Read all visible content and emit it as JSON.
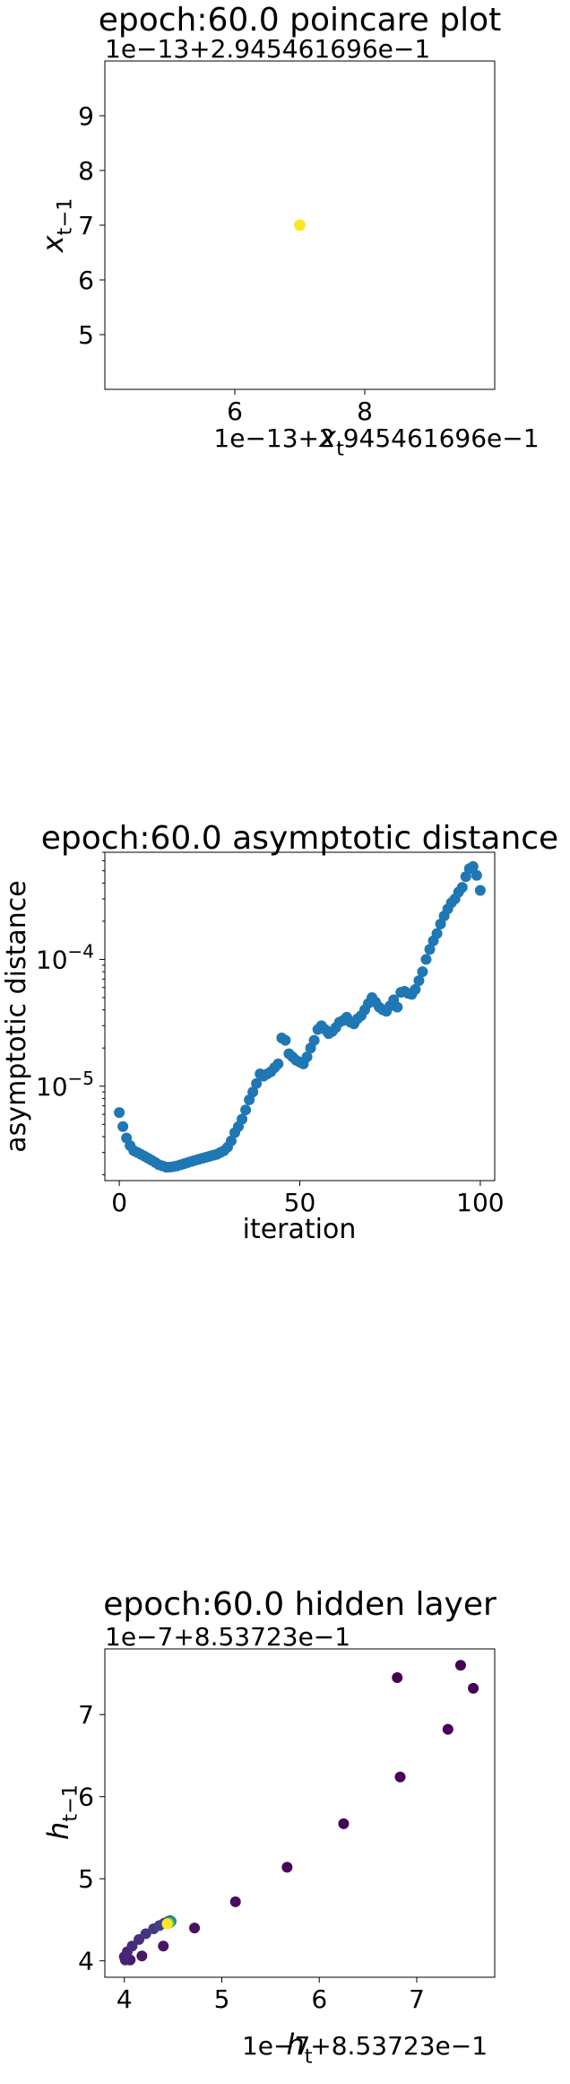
{
  "chart_data": [
    {
      "type": "scatter",
      "title": "epoch:60.0 poincare plot",
      "xlabel": "x_t",
      "ylabel": "x_{t-1}",
      "x_offset_label": "1e−13+2.945461696e−1",
      "y_offset_label": "1e−13+2.945461696e−1",
      "xlim": [
        4.0,
        10.0
      ],
      "ylim": [
        4.0,
        10.0
      ],
      "xticks": [
        6,
        8
      ],
      "yticks": [
        5,
        6,
        7,
        8,
        9
      ],
      "points": [
        {
          "x": 7.0,
          "y": 7.0,
          "color": "#fde725"
        }
      ]
    },
    {
      "type": "scatter",
      "title": "epoch:60.0 asymptotic distance",
      "xlabel": "iteration",
      "ylabel": "asymptotic distance",
      "yscale": "log",
      "xlim": [
        -4,
        104
      ],
      "ylim": [
        1.8e-06,
        0.0007
      ],
      "xticks": [
        0,
        50,
        100
      ],
      "yticks": [
        {
          "value": 1e-05,
          "base": "10",
          "exp": "−5"
        },
        {
          "value": 0.0001,
          "base": "10",
          "exp": "−4"
        }
      ],
      "color": "#1f77b4",
      "y": [
        6.2e-06,
        4.8e-06,
        3.9e-06,
        3.4e-06,
        3.1e-06,
        3e-06,
        2.9e-06,
        2.8e-06,
        2.7e-06,
        2.6e-06,
        2.5e-06,
        2.4e-06,
        2.35e-06,
        2.3e-06,
        2.3e-06,
        2.32e-06,
        2.35e-06,
        2.4e-06,
        2.45e-06,
        2.5e-06,
        2.55e-06,
        2.6e-06,
        2.65e-06,
        2.7e-06,
        2.75e-06,
        2.8e-06,
        2.85e-06,
        2.9e-06,
        3e-06,
        3.1e-06,
        3.3e-06,
        3.7e-06,
        4.3e-06,
        4.8e-06,
        5.5e-06,
        6.5e-06,
        7.8e-06,
        9e-06,
        1.05e-05,
        1.25e-05,
        1.2e-05,
        1.25e-05,
        1.3e-05,
        1.4e-05,
        1.5e-05,
        2.4e-05,
        2.3e-05,
        1.8e-05,
        1.7e-05,
        1.6e-05,
        1.55e-05,
        1.5e-05,
        1.7e-05,
        2e-05,
        2.3e-05,
        2.8e-05,
        3e-05,
        2.8e-05,
        2.6e-05,
        2.7e-05,
        2.9e-05,
        3.2e-05,
        3.3e-05,
        3.5e-05,
        3.2e-05,
        3.1e-05,
        3.4e-05,
        3.6e-05,
        4e-05,
        4.5e-05,
        5e-05,
        4.6e-05,
        4.2e-05,
        4e-05,
        3.9e-05,
        4.3e-05,
        4.8e-05,
        4.2e-05,
        5.5e-05,
        5.6e-05,
        5.4e-05,
        5.3e-05,
        5.8e-05,
        6.8e-05,
        8e-05,
        0.0001,
        0.00012,
        0.00014,
        0.00016,
        0.00019,
        0.00022,
        0.00025,
        0.00028,
        0.0003,
        0.00034,
        0.00037,
        0.00045,
        0.00052,
        0.00054,
        0.00046,
        0.00035
      ]
    },
    {
      "type": "scatter",
      "title": "epoch:60.0 hidden layer",
      "xlabel": "h_t",
      "ylabel": "h_{t-1}",
      "x_offset_label": "1e−7+8.53723e−1",
      "y_offset_label": "1e−7+8.53723e−1",
      "xlim": [
        3.8,
        7.8
      ],
      "ylim": [
        3.8,
        7.8
      ],
      "xticks": [
        4,
        5,
        6,
        7
      ],
      "yticks": [
        4,
        5,
        6,
        7
      ],
      "points": [
        {
          "x": 6.8,
          "y": 7.45,
          "color": "#440154"
        },
        {
          "x": 7.45,
          "y": 7.6,
          "color": "#440154"
        },
        {
          "x": 7.58,
          "y": 7.32,
          "color": "#440154"
        },
        {
          "x": 7.32,
          "y": 6.82,
          "color": "#440154"
        },
        {
          "x": 6.83,
          "y": 6.24,
          "color": "#440154"
        },
        {
          "x": 6.25,
          "y": 5.67,
          "color": "#450559"
        },
        {
          "x": 5.67,
          "y": 5.14,
          "color": "#46085c"
        },
        {
          "x": 5.14,
          "y": 4.72,
          "color": "#470d60"
        },
        {
          "x": 4.72,
          "y": 4.4,
          "color": "#471063"
        },
        {
          "x": 4.4,
          "y": 4.18,
          "color": "#481467"
        },
        {
          "x": 4.18,
          "y": 4.06,
          "color": "#48186a"
        },
        {
          "x": 4.06,
          "y": 4.01,
          "color": "#481b6d"
        },
        {
          "x": 4.01,
          "y": 4.01,
          "color": "#482071"
        },
        {
          "x": 4.0,
          "y": 4.05,
          "color": "#482475"
        },
        {
          "x": 4.03,
          "y": 4.11,
          "color": "#472878"
        },
        {
          "x": 4.08,
          "y": 4.18,
          "color": "#472c7a"
        },
        {
          "x": 4.15,
          "y": 4.26,
          "color": "#46307e"
        },
        {
          "x": 4.22,
          "y": 4.33,
          "color": "#453581"
        },
        {
          "x": 4.3,
          "y": 4.39,
          "color": "#443983"
        },
        {
          "x": 4.36,
          "y": 4.43,
          "color": "#433e85"
        },
        {
          "x": 4.41,
          "y": 4.46,
          "color": "#414487"
        },
        {
          "x": 4.45,
          "y": 4.48,
          "color": "#3b518b"
        },
        {
          "x": 4.47,
          "y": 4.49,
          "color": "#32648e"
        },
        {
          "x": 4.48,
          "y": 4.48,
          "color": "#2a788e"
        },
        {
          "x": 4.47,
          "y": 4.47,
          "color": "#21918c"
        },
        {
          "x": 4.46,
          "y": 4.46,
          "color": "#35b779"
        },
        {
          "x": 4.45,
          "y": 4.46,
          "color": "#6ece58"
        },
        {
          "x": 4.44,
          "y": 4.45,
          "color": "#b5de2b"
        },
        {
          "x": 4.44,
          "y": 4.45,
          "color": "#fde725"
        }
      ]
    }
  ]
}
